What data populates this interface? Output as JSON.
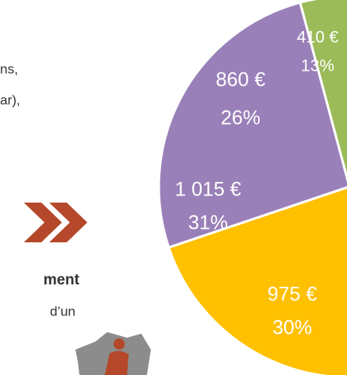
{
  "chart_data": {
    "type": "pie",
    "texts": [
      "ns,",
      "ar),",
      "ment",
      "d’un"
    ],
    "categories": [
      null,
      null,
      null,
      null
    ],
    "values": [
      13,
      26,
      31,
      30
    ],
    "value_labels": [
      "13%",
      "26%",
      "31%",
      "30%"
    ],
    "amounts": [
      410,
      860,
      1015,
      975
    ],
    "amount_labels": [
      "410 €",
      "860 €",
      "1 015 €",
      "975 €"
    ],
    "colors": [
      "#9bbb59",
      "#9a80b8",
      "#ffc000",
      "#958b55"
    ]
  }
}
